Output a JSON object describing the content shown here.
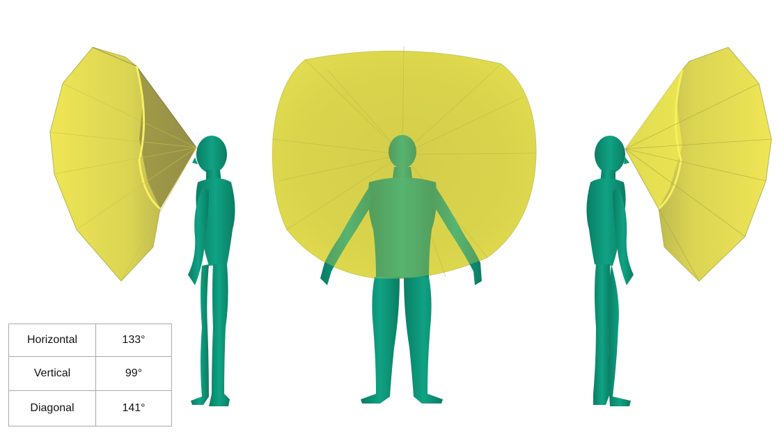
{
  "fov_table": [
    {
      "label": "Horizontal",
      "value": "133°"
    },
    {
      "label": "Vertical",
      "value": "99°"
    },
    {
      "label": "Diagonal",
      "value": "141°"
    }
  ],
  "colors": {
    "body": "#0e9b7c",
    "body_shade": "#0a7a62",
    "fov_fill": "#e6e048",
    "fov_edge": "#f4ee55",
    "fov_shade": "#9a9445"
  },
  "views": [
    "side-left-view",
    "front-view",
    "side-right-view"
  ]
}
